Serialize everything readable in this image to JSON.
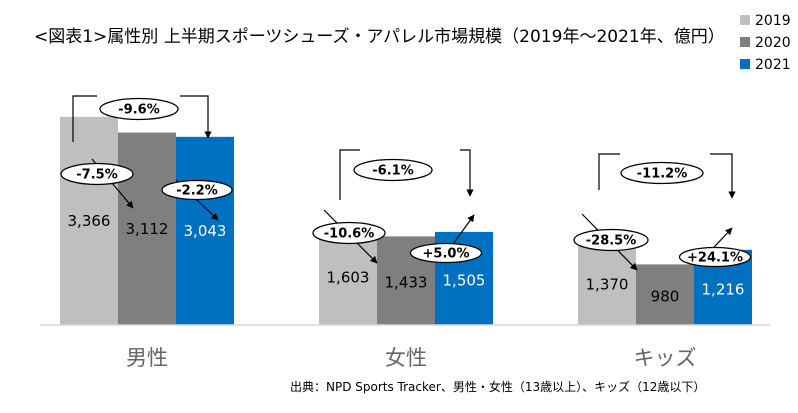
{
  "chart_data": {
    "type": "bar",
    "title": "<図表1>属性別 上半期スポーツシューズ・アパレル市場規模（2019年〜2021年、億円）",
    "categories": [
      "男性",
      "女性",
      "キッズ"
    ],
    "series": [
      {
        "name": "2019",
        "color": "#BFBFBF",
        "values": [
          3366,
          1603,
          1370
        ],
        "labels": [
          "3,366",
          "1,603",
          "1,370"
        ]
      },
      {
        "name": "2020",
        "color": "#7F7F7F",
        "values": [
          3112,
          1433,
          980
        ],
        "labels": [
          "3,112",
          "1,433",
          "980"
        ]
      },
      {
        "name": "2021",
        "color": "#0070C0",
        "values": [
          3043,
          1505,
          1216
        ],
        "labels": [
          "3,043",
          "1,505",
          "1,216"
        ]
      }
    ],
    "ylim": [
      0,
      3800
    ],
    "legend_position": "top-right",
    "annotations": [
      {
        "category": "男性",
        "from": "2019",
        "to": "2020",
        "text": "-7.5%"
      },
      {
        "category": "男性",
        "from": "2020",
        "to": "2021",
        "text": "-2.2%"
      },
      {
        "category": "男性",
        "from": "2019",
        "to": "2021",
        "text": "-9.6%"
      },
      {
        "category": "女性",
        "from": "2019",
        "to": "2020",
        "text": "-10.6%"
      },
      {
        "category": "女性",
        "from": "2020",
        "to": "2021",
        "text": "+5.0%"
      },
      {
        "category": "女性",
        "from": "2019",
        "to": "2021",
        "text": "-6.1%"
      },
      {
        "category": "キッズ",
        "from": "2019",
        "to": "2020",
        "text": "-28.5%"
      },
      {
        "category": "キッズ",
        "from": "2020",
        "to": "2021",
        "text": "+24.1%"
      },
      {
        "category": "キッズ",
        "from": "2019",
        "to": "2021",
        "text": "-11.2%"
      }
    ],
    "source": "出典：NPD Sports Tracker、男性・女性（13歳以上）、キッズ（12歳以下）"
  }
}
